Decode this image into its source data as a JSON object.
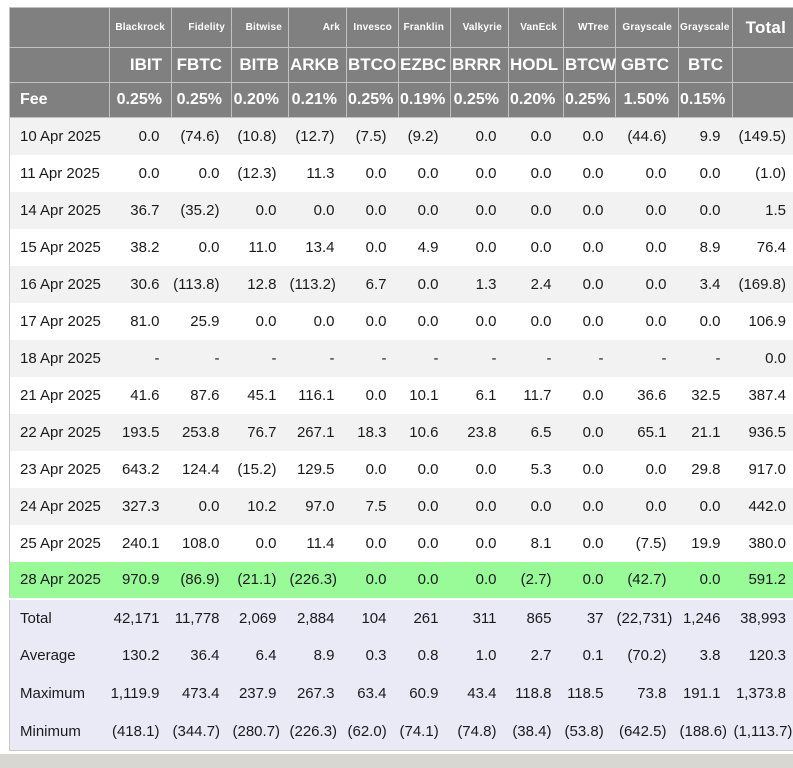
{
  "colors": {
    "header_bg": "#808080",
    "header_text": "#ffffff",
    "row_alt_bg": "#f2f2f2",
    "highlight_row_bg": "#98fb98",
    "summary_bg": "#e9eaf6",
    "negative_text": "#ff3b30"
  },
  "chart_data": {
    "type": "table",
    "header": {
      "firms": [
        "Blackrock",
        "Fidelity",
        "Bitwise",
        "Ark",
        "Invesco",
        "Franklin",
        "Valkyrie",
        "VanEck",
        "WTree",
        "Grayscale",
        "Grayscale"
      ],
      "total_label": "Total",
      "tickers": [
        "IBIT",
        "FBTC",
        "BITB",
        "ARKB",
        "BTCO",
        "EZBC",
        "BRRR",
        "HODL",
        "BTCW",
        "GBTC",
        "BTC"
      ],
      "fee_label": "Fee",
      "fees": [
        "0.25%",
        "0.25%",
        "0.20%",
        "0.21%",
        "0.25%",
        "0.19%",
        "0.25%",
        "0.20%",
        "0.25%",
        "1.50%",
        "0.15%"
      ]
    },
    "rows": [
      {
        "date": "10 Apr 2025",
        "highlight": false,
        "values": [
          "0.0",
          "(74.6)",
          "(10.8)",
          "(12.7)",
          "(7.5)",
          "(9.2)",
          "0.0",
          "0.0",
          "0.0",
          "(44.6)",
          "9.9",
          "(149.5)"
        ]
      },
      {
        "date": "11 Apr 2025",
        "highlight": false,
        "values": [
          "0.0",
          "0.0",
          "(12.3)",
          "11.3",
          "0.0",
          "0.0",
          "0.0",
          "0.0",
          "0.0",
          "0.0",
          "0.0",
          "(1.0)"
        ]
      },
      {
        "date": "14 Apr 2025",
        "highlight": false,
        "values": [
          "36.7",
          "(35.2)",
          "0.0",
          "0.0",
          "0.0",
          "0.0",
          "0.0",
          "0.0",
          "0.0",
          "0.0",
          "0.0",
          "1.5"
        ]
      },
      {
        "date": "15 Apr 2025",
        "highlight": false,
        "values": [
          "38.2",
          "0.0",
          "11.0",
          "13.4",
          "0.0",
          "4.9",
          "0.0",
          "0.0",
          "0.0",
          "0.0",
          "8.9",
          "76.4"
        ]
      },
      {
        "date": "16 Apr 2025",
        "highlight": false,
        "values": [
          "30.6",
          "(113.8)",
          "12.8",
          "(113.2)",
          "6.7",
          "0.0",
          "1.3",
          "2.4",
          "0.0",
          "0.0",
          "3.4",
          "(169.8)"
        ]
      },
      {
        "date": "17 Apr 2025",
        "highlight": false,
        "values": [
          "81.0",
          "25.9",
          "0.0",
          "0.0",
          "0.0",
          "0.0",
          "0.0",
          "0.0",
          "0.0",
          "0.0",
          "0.0",
          "106.9"
        ]
      },
      {
        "date": "18 Apr 2025",
        "highlight": false,
        "values": [
          "-",
          "-",
          "-",
          "-",
          "-",
          "-",
          "-",
          "-",
          "-",
          "-",
          "-",
          "0.0"
        ]
      },
      {
        "date": "21 Apr 2025",
        "highlight": false,
        "values": [
          "41.6",
          "87.6",
          "45.1",
          "116.1",
          "0.0",
          "10.1",
          "6.1",
          "11.7",
          "0.0",
          "36.6",
          "32.5",
          "387.4"
        ]
      },
      {
        "date": "22 Apr 2025",
        "highlight": false,
        "values": [
          "193.5",
          "253.8",
          "76.7",
          "267.1",
          "18.3",
          "10.6",
          "23.8",
          "6.5",
          "0.0",
          "65.1",
          "21.1",
          "936.5"
        ]
      },
      {
        "date": "23 Apr 2025",
        "highlight": false,
        "values": [
          "643.2",
          "124.4",
          "(15.2)",
          "129.5",
          "0.0",
          "0.0",
          "0.0",
          "5.3",
          "0.0",
          "0.0",
          "29.8",
          "917.0"
        ]
      },
      {
        "date": "24 Apr 2025",
        "highlight": false,
        "values": [
          "327.3",
          "0.0",
          "10.2",
          "97.0",
          "7.5",
          "0.0",
          "0.0",
          "0.0",
          "0.0",
          "0.0",
          "0.0",
          "442.0"
        ]
      },
      {
        "date": "25 Apr 2025",
        "highlight": false,
        "values": [
          "240.1",
          "108.0",
          "0.0",
          "11.4",
          "0.0",
          "0.0",
          "0.0",
          "8.1",
          "0.0",
          "(7.5)",
          "19.9",
          "380.0"
        ]
      },
      {
        "date": "28 Apr 2025",
        "highlight": true,
        "values": [
          "970.9",
          "(86.9)",
          "(21.1)",
          "(226.3)",
          "0.0",
          "0.0",
          "0.0",
          "(2.7)",
          "0.0",
          "(42.7)",
          "0.0",
          "591.2"
        ]
      }
    ],
    "summary_rows": [
      {
        "label": "Total",
        "values": [
          "42,171",
          "11,778",
          "2,069",
          "2,884",
          "104",
          "261",
          "311",
          "865",
          "37",
          "(22,731)",
          "1,246",
          "38,993"
        ]
      },
      {
        "label": "Average",
        "values": [
          "130.2",
          "36.4",
          "6.4",
          "8.9",
          "0.3",
          "0.8",
          "1.0",
          "2.7",
          "0.1",
          "(70.2)",
          "3.8",
          "120.3"
        ]
      },
      {
        "label": "Maximum",
        "values": [
          "1,119.9",
          "473.4",
          "237.9",
          "267.3",
          "63.4",
          "60.9",
          "43.4",
          "118.8",
          "118.5",
          "73.8",
          "191.1",
          "1,373.8"
        ]
      },
      {
        "label": "Minimum",
        "values": [
          "(418.1)",
          "(344.7)",
          "(280.7)",
          "(226.3)",
          "(62.0)",
          "(74.1)",
          "(74.8)",
          "(38.4)",
          "(53.8)",
          "(642.5)",
          "(188.6)",
          "(1,113.7)"
        ]
      }
    ]
  }
}
